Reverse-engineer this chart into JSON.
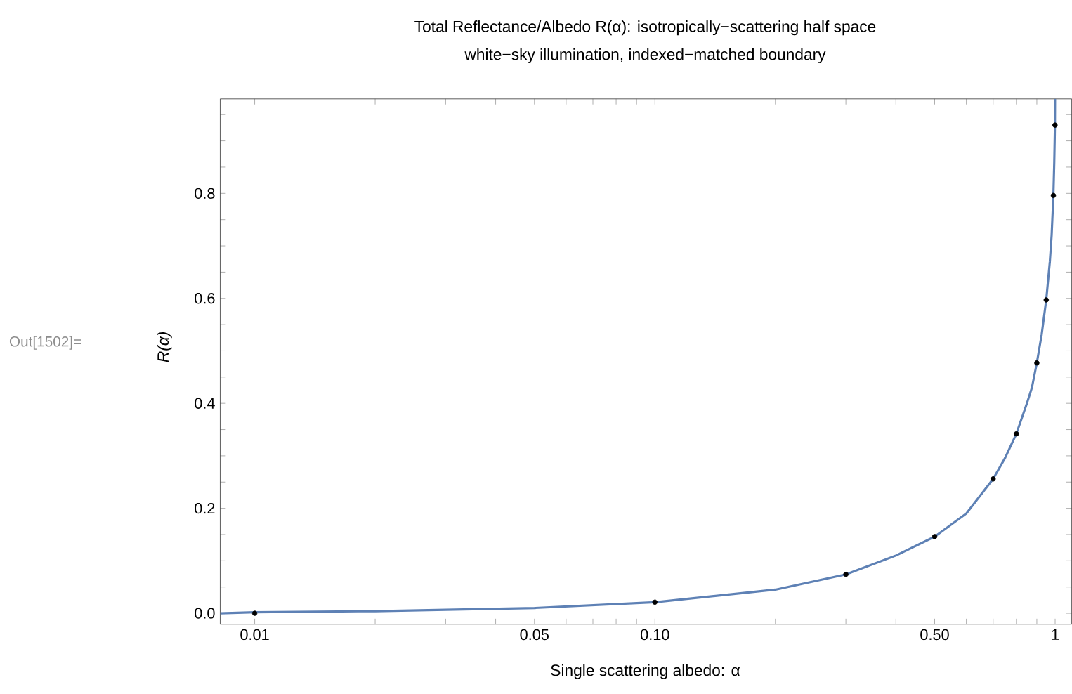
{
  "chart_data": {
    "type": "line",
    "title": "Total Reflectance/Albedo R(α): isotropically−scattering half space",
    "subtitle": "white−sky illumination, indexed−matched boundary",
    "xlabel": "Single scattering albedo: α",
    "ylabel": "R(α)",
    "annotations": [
      "Out[1502]="
    ],
    "log": "x",
    "xlim": [
      0.0082,
      1.1
    ],
    "ylim": [
      -0.021,
      0.98
    ],
    "xticks": [
      {
        "value": 0.01,
        "label": "0.01"
      },
      {
        "value": 0.02,
        "label": null
      },
      {
        "value": 0.03,
        "label": null
      },
      {
        "value": 0.04,
        "label": null
      },
      {
        "value": 0.05,
        "label": "0.05"
      },
      {
        "value": 0.06,
        "label": null
      },
      {
        "value": 0.07,
        "label": null
      },
      {
        "value": 0.08,
        "label": null
      },
      {
        "value": 0.09,
        "label": null
      },
      {
        "value": 0.1,
        "label": "0.10"
      },
      {
        "value": 0.2,
        "label": null
      },
      {
        "value": 0.3,
        "label": null
      },
      {
        "value": 0.4,
        "label": null
      },
      {
        "value": 0.5,
        "label": "0.50"
      },
      {
        "value": 0.6,
        "label": null
      },
      {
        "value": 0.7,
        "label": null
      },
      {
        "value": 0.8,
        "label": null
      },
      {
        "value": 0.9,
        "label": null
      },
      {
        "value": 1,
        "label": "1"
      }
    ],
    "yticks": [
      {
        "value": 0,
        "label": "0.0"
      },
      {
        "value": 0.05,
        "label": null
      },
      {
        "value": 0.1,
        "label": null
      },
      {
        "value": 0.15,
        "label": null
      },
      {
        "value": 0.2,
        "label": "0.2"
      },
      {
        "value": 0.25,
        "label": null
      },
      {
        "value": 0.3,
        "label": null
      },
      {
        "value": 0.35,
        "label": null
      },
      {
        "value": 0.4,
        "label": "0.4"
      },
      {
        "value": 0.45,
        "label": null
      },
      {
        "value": 0.5,
        "label": null
      },
      {
        "value": 0.55,
        "label": null
      },
      {
        "value": 0.6,
        "label": "0.6"
      },
      {
        "value": 0.65,
        "label": null
      },
      {
        "value": 0.7,
        "label": null
      },
      {
        "value": 0.75,
        "label": null
      },
      {
        "value": 0.8,
        "label": "0.8"
      },
      {
        "value": 0.85,
        "label": null
      },
      {
        "value": 0.9,
        "label": null
      },
      {
        "value": 0.95,
        "label": null
      }
    ],
    "series": [
      {
        "color": "#5e81b5",
        "marker": "none",
        "line_style": "solid",
        "x": [
          0.0082,
          0.01,
          0.02,
          0.05,
          0.1,
          0.2,
          0.3,
          0.4,
          0.5,
          0.6,
          0.7,
          0.75,
          0.8,
          0.85,
          0.875,
          0.9,
          0.925,
          0.95,
          0.97,
          0.98,
          0.99,
          0.995,
          0.999,
          0.9998
        ],
        "values": [
          0.0,
          0.002,
          0.004,
          0.01,
          0.021,
          0.045,
          0.074,
          0.11,
          0.146,
          0.19,
          0.256,
          0.296,
          0.342,
          0.4,
          0.43,
          0.477,
          0.53,
          0.597,
          0.67,
          0.72,
          0.796,
          0.86,
          0.93,
          0.98
        ]
      },
      {
        "type": "scatter",
        "color": "#000000",
        "marker": "circle",
        "x": [
          0.01,
          0.1,
          0.3,
          0.5,
          0.7,
          0.8,
          0.9,
          0.95,
          0.99,
          0.999
        ],
        "values": [
          0.0,
          0.021,
          0.074,
          0.146,
          0.256,
          0.342,
          0.477,
          0.597,
          0.796,
          0.93
        ]
      }
    ]
  }
}
